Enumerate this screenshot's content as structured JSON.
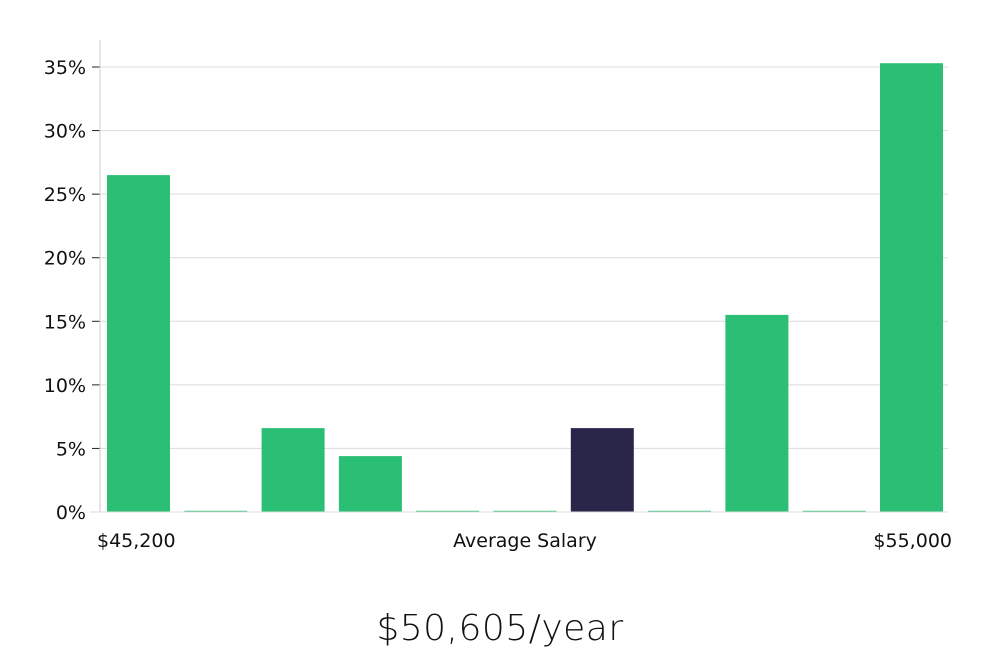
{
  "chart_data": {
    "type": "bar",
    "x_labels": {
      "left": "$45,200",
      "center": "Average Salary",
      "right": "$55,000"
    },
    "values": [
      26.5,
      0,
      6.6,
      4.4,
      0,
      0,
      6.6,
      0,
      15.5,
      0,
      35.3
    ],
    "highlight_index": 6,
    "ylim": [
      0,
      37
    ],
    "yticks": [
      0,
      5,
      10,
      15,
      20,
      25,
      30,
      35
    ],
    "ytick_labels": [
      "0%",
      "5%",
      "10%",
      "15%",
      "20%",
      "25%",
      "30%",
      "35%"
    ],
    "grid": true,
    "colors": {
      "bar": "#2bbf76",
      "highlight": "#29264a",
      "grid": "#dcdcdc",
      "axis": "#cccccc"
    }
  },
  "headline": "$50,605/year"
}
